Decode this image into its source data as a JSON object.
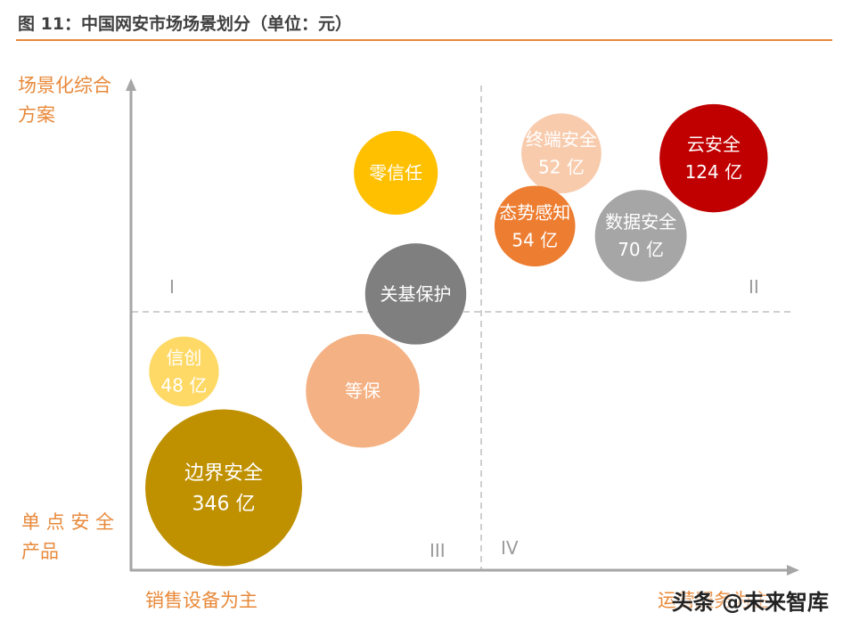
{
  "title": "图 11：中国网安市场场景划分（单位：元）",
  "watermark": "头条 @未来智库",
  "axes": {
    "y_top_line1": "场景化综合",
    "y_top_line2": "方案",
    "y_bottom_line1": "单 点 安 全",
    "y_bottom_line2": "产品",
    "x_left": "销售设备为主",
    "x_right": "运营服务为主"
  },
  "quadrants": {
    "q1": "I",
    "q2": "II",
    "q3": "III",
    "q4": "IV"
  },
  "colors": {
    "accent": "#E8893A",
    "axis": "#A6A6A6",
    "divider": "#BFBFBF"
  },
  "chart_data": {
    "type": "scatter",
    "subtype": "bubble",
    "title": "图 11：中国网安市场场景划分（单位：元）",
    "xlabel_left": "销售设备为主",
    "xlabel_right": "运营服务为主",
    "ylabel_top": "场景化综合方案",
    "ylabel_bottom": "单点安全产品",
    "xlim": [
      0,
      1
    ],
    "ylim": [
      0,
      1
    ],
    "grid": false,
    "bubbles": [
      {
        "label": "零信任",
        "value_label": "",
        "x": 0.4,
        "y": 0.82,
        "size": 0.107,
        "color": "#FFC000",
        "text_color": "#ffffff"
      },
      {
        "label": "终端安全",
        "value_label": "52 亿",
        "x": 0.65,
        "y": 0.86,
        "size": 0.102,
        "color": "#F8CBAD",
        "text_color": "#ffffff"
      },
      {
        "label": "云安全",
        "value_label": "124 亿",
        "x": 0.88,
        "y": 0.85,
        "size": 0.138,
        "color": "#C00000",
        "text_color": "#ffffff"
      },
      {
        "label": "态势感知",
        "value_label": "54 亿",
        "x": 0.61,
        "y": 0.71,
        "size": 0.103,
        "color": "#ED7D31",
        "text_color": "#ffffff"
      },
      {
        "label": "数据安全",
        "value_label": "70 亿",
        "x": 0.77,
        "y": 0.69,
        "size": 0.117,
        "color": "#A6A6A6",
        "text_color": "#ffffff"
      },
      {
        "label": "关基保护",
        "value_label": "",
        "x": 0.43,
        "y": 0.57,
        "size": 0.129,
        "color": "#7F7F7F",
        "text_color": "#ffffff"
      },
      {
        "label": "信创",
        "value_label": "48 亿",
        "x": 0.08,
        "y": 0.41,
        "size": 0.089,
        "color": "#FFD966",
        "text_color": "#ffffff"
      },
      {
        "label": "等保",
        "value_label": "",
        "x": 0.35,
        "y": 0.37,
        "size": 0.145,
        "color": "#F4B183",
        "text_color": "#ffffff"
      },
      {
        "label": "边界安全",
        "value_label": "346 亿",
        "x": 0.14,
        "y": 0.17,
        "size": 0.2,
        "color": "#BF9000",
        "text_color": "#ffffff"
      }
    ]
  }
}
